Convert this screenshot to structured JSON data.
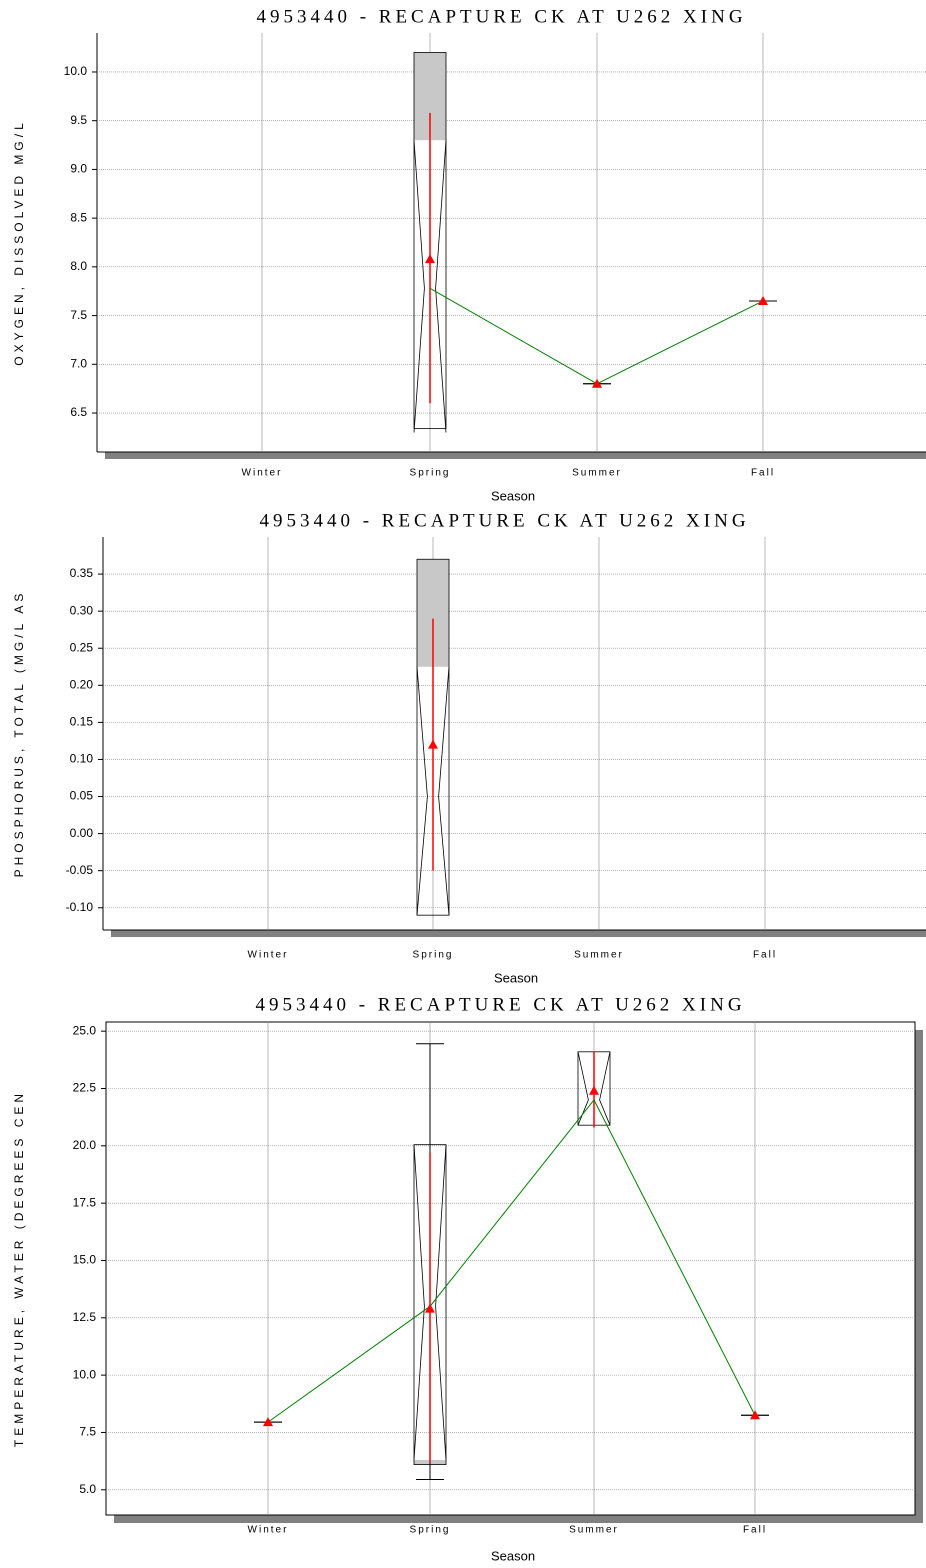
{
  "chart_data": [
    {
      "type": "box",
      "title": "4953440 - RECAPTURE CK AT U262 XING",
      "y_label": "OXYGEN, DISSOLVED MG/L",
      "x_label": "Season",
      "categories": [
        "Winter",
        "Spring",
        "Summer",
        "Fall"
      ],
      "ylim": [
        6.1,
        10.4
      ],
      "yticks": [
        6.5,
        {
          "value": 7,
          "label": "7.0"
        },
        7.5,
        {
          "value": 8,
          "label": "8.0"
        },
        8.5,
        {
          "value": 9,
          "label": "9.0"
        },
        9.5,
        {
          "value": 10,
          "label": "10.0"
        }
      ],
      "box_color": "#c8c8c8",
      "mean_color": "#ff0000",
      "median_line_color": "#008000",
      "grid": true,
      "boxes": [
        null,
        {
          "q1": 6.34,
          "q3": 10.2,
          "median": 7.78,
          "notch_low": 6.3,
          "notch_high": 9.3,
          "mean": 8.08,
          "ci_low": 6.6,
          "ci_high": 9.58
        },
        {
          "low": 6.8,
          "high": 6.8,
          "median": 6.8,
          "mean": 6.8
        },
        {
          "low": 7.65,
          "high": 7.65,
          "median": 7.65,
          "mean": 7.65
        }
      ]
    },
    {
      "type": "box",
      "title": "4953440 - RECAPTURE CK AT U262 XING",
      "y_label": "PHOSPHORUS, TOTAL (MG/L AS",
      "x_label": "Season",
      "categories": [
        "Winter",
        "Spring",
        "Summer",
        "Fall"
      ],
      "ylim": [
        -0.13,
        0.4
      ],
      "yticks": [
        {
          "value": -0.1,
          "label": "-0.10"
        },
        -0.05,
        {
          "value": 0,
          "label": "0.00"
        },
        0.05,
        {
          "value": 0.1,
          "label": "0.10"
        },
        0.15,
        {
          "value": 0.2,
          "label": "0.20"
        },
        0.25,
        {
          "value": 0.3,
          "label": "0.30"
        },
        0.35
      ],
      "box_color": "#c8c8c8",
      "mean_color": "#ff0000",
      "median_line_color": "#008000",
      "grid": true,
      "boxes": [
        null,
        {
          "q1": -0.11,
          "q3": 0.37,
          "median": 0.05,
          "notch_low": -0.11,
          "notch_high": 0.225,
          "mean": 0.12,
          "ci_low": -0.05,
          "ci_high": 0.29
        },
        null,
        null
      ]
    },
    {
      "type": "box",
      "title": "4953440 - RECAPTURE CK AT U262 XING",
      "y_label": "TEMPERATURE, WATER (DEGREES CEN",
      "x_label": "Season",
      "categories": [
        "Winter",
        "Spring",
        "Summer",
        "Fall"
      ],
      "ylim": [
        3.9,
        25.4
      ],
      "yticks": [
        {
          "value": 5,
          "label": "5.0"
        },
        7.5,
        {
          "value": 10,
          "label": "10.0"
        },
        12.5,
        {
          "value": 15,
          "label": "15.0"
        },
        17.5,
        {
          "value": 20,
          "label": "20.0"
        },
        22.5,
        {
          "value": 25,
          "label": "25.0"
        }
      ],
      "box_color": "#c8c8c8",
      "mean_color": "#ff0000",
      "median_line_color": "#008000",
      "grid": true,
      "boxes": [
        {
          "low": 7.95,
          "high": 7.95,
          "median": 7.95,
          "mean": 7.95
        },
        {
          "low": 5.45,
          "high": 24.45,
          "q1": 6.1,
          "q3": 20.05,
          "median": 13.0,
          "notch_low": 6.3,
          "notch_high": 20.05,
          "mean": 12.9,
          "ci_low": 6.2,
          "ci_high": 19.7
        },
        {
          "q1": 20.9,
          "q3": 24.1,
          "median": 22.0,
          "notch_low": 20.9,
          "notch_high": 24.1,
          "mean": 22.4,
          "ci_low": 20.8,
          "ci_high": 24.1
        },
        {
          "low": 8.25,
          "high": 8.25,
          "median": 8.25,
          "mean": 8.25
        }
      ]
    }
  ]
}
